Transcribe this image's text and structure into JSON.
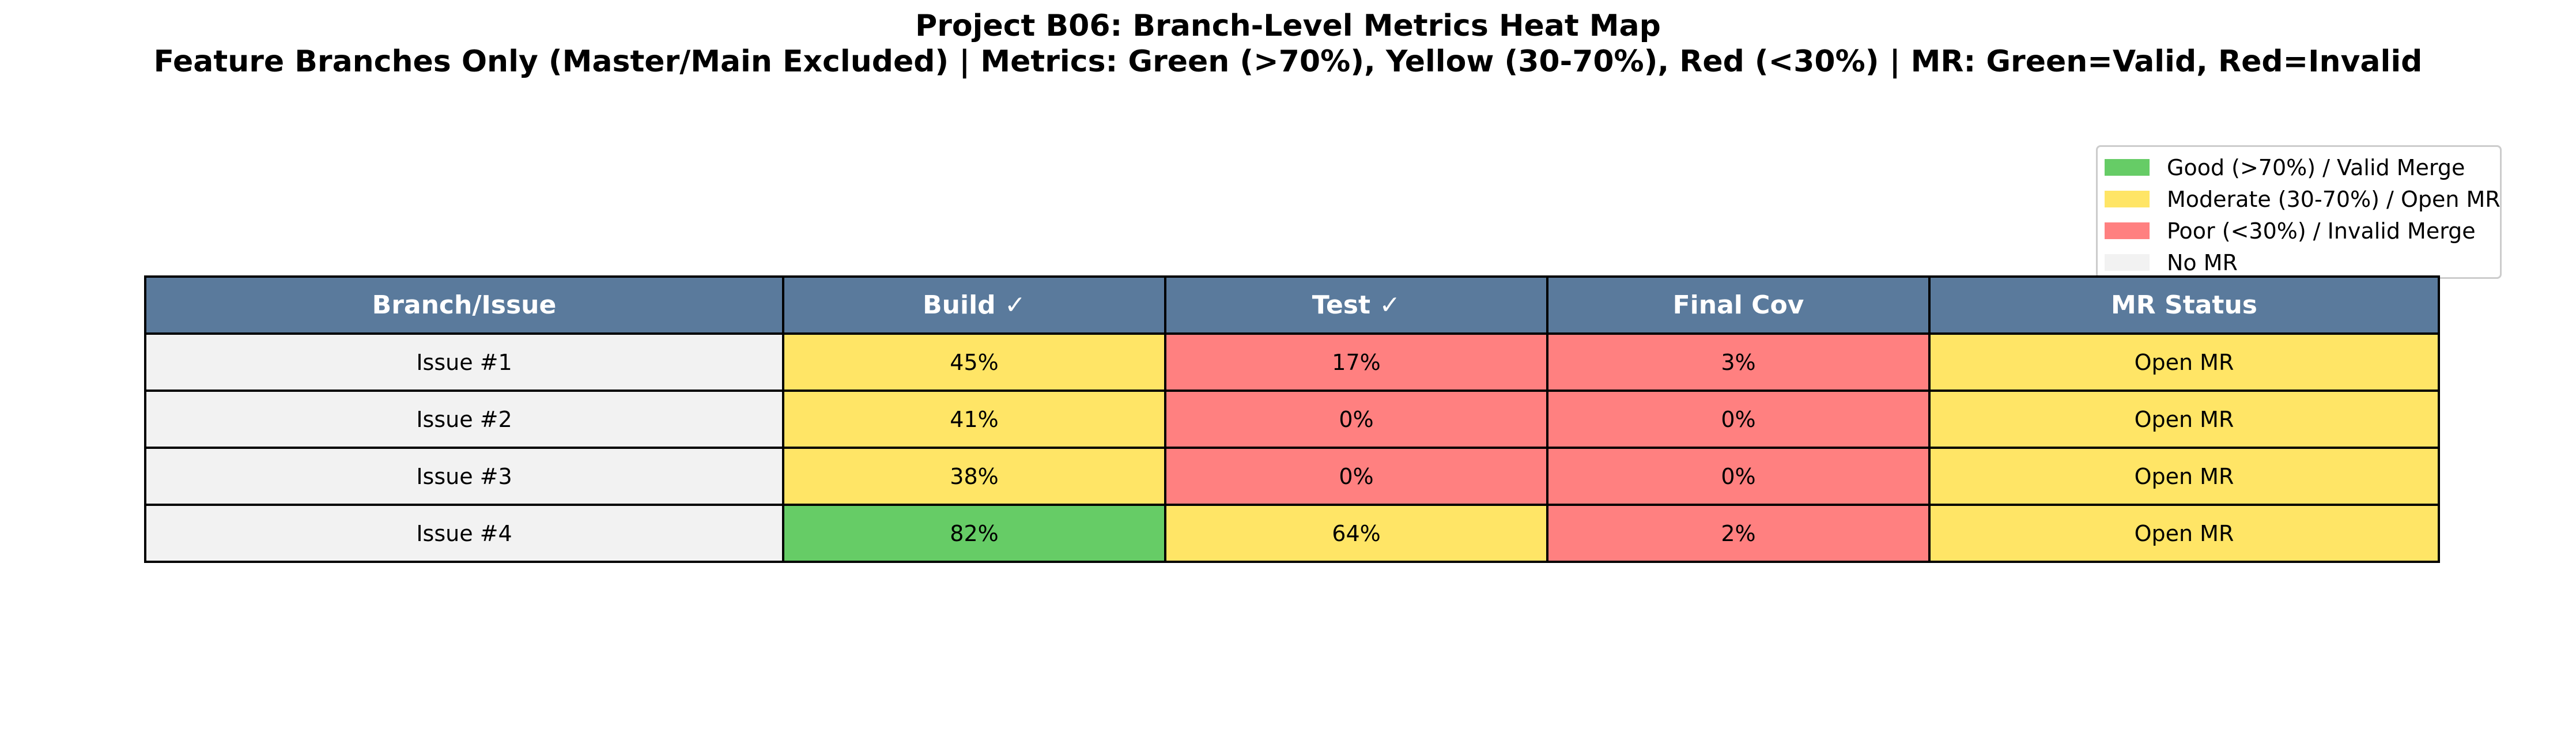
{
  "chart_data": {
    "type": "table",
    "title": "Project B06: Branch-Level Metrics Heat Map",
    "subtitle": "Feature Branches Only (Master/Main Excluded) | Metrics: Green (>70%), Yellow (30-70%), Red (<30%) | MR: Green=Valid, Red=Invalid",
    "columns": [
      "Branch/Issue",
      "Build ✓",
      "Test ✓",
      "Final Cov",
      "MR Status"
    ],
    "rows": [
      {
        "branch": "Issue #1",
        "build": 45,
        "test": 17,
        "final_cov": 3,
        "mr_status": "Open MR"
      },
      {
        "branch": "Issue #2",
        "build": 41,
        "test": 0,
        "final_cov": 0,
        "mr_status": "Open MR"
      },
      {
        "branch": "Issue #3",
        "build": 38,
        "test": 0,
        "final_cov": 0,
        "mr_status": "Open MR"
      },
      {
        "branch": "Issue #4",
        "build": 82,
        "test": 64,
        "final_cov": 2,
        "mr_status": "Open MR"
      }
    ],
    "value_suffix": "%",
    "thresholds": {
      "good_above": 70,
      "poor_below": 30
    },
    "mr_status_colors": {
      "Valid Merge": "good",
      "Open MR": "moderate",
      "Invalid Merge": "poor",
      "No MR": "none"
    },
    "legend": {
      "placement": "upper-right",
      "items": [
        {
          "key": "good",
          "label": "Good (>70%) / Valid Merge",
          "color": "#66cc66"
        },
        {
          "key": "moderate",
          "label": "Moderate (30-70%) / Open MR",
          "color": "#ffe566"
        },
        {
          "key": "poor",
          "label": "Poor (<30%) / Invalid Merge",
          "color": "#ff8080"
        },
        {
          "key": "none",
          "label": "No MR",
          "color": "#f2f2f2"
        }
      ]
    },
    "colors": {
      "header_bg": "#5a7a9c",
      "header_text": "#ffffff",
      "branch_cell_bg": "#f2f2f2",
      "cell_border": "#000000"
    }
  }
}
